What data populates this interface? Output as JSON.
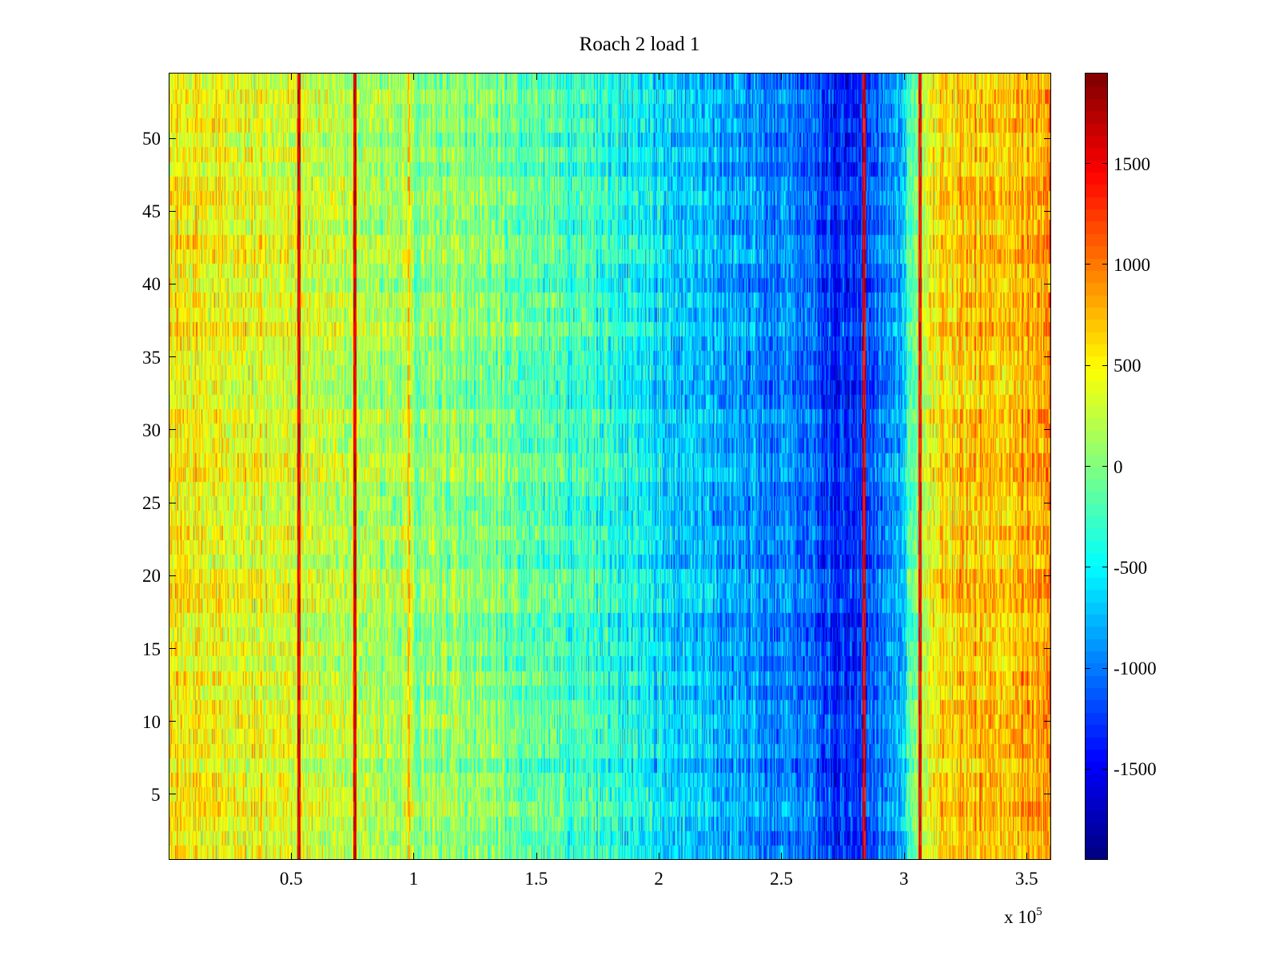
{
  "chart_data": {
    "type": "heatmap",
    "title": "Roach 2 load 1",
    "xlabel": "",
    "ylabel": "",
    "x_exponent_base": "x 10",
    "x_exponent_power": "5",
    "xlim": [
      0,
      3.6
    ],
    "ylim": [
      0.5,
      54.5
    ],
    "xticks": [
      0.5,
      1,
      1.5,
      2,
      2.5,
      3,
      3.5
    ],
    "xtick_labels": [
      "0.5",
      "1",
      "1.5",
      "2",
      "2.5",
      "3",
      "3.5"
    ],
    "yticks": [
      5,
      10,
      15,
      20,
      25,
      30,
      35,
      40,
      45,
      50
    ],
    "ytick_labels": [
      "5",
      "10",
      "15",
      "20",
      "25",
      "30",
      "35",
      "40",
      "45",
      "50"
    ],
    "rows": 54,
    "colorbar": {
      "colormap": "jet",
      "clim": [
        -1950,
        1950
      ],
      "ticks": [
        -1500,
        -1000,
        -500,
        0,
        500,
        1000,
        1500
      ],
      "tick_labels": [
        "-1500",
        "-1000",
        "-500",
        "0",
        "500",
        "1000",
        "1500"
      ]
    },
    "mean_profile_by_x": [
      {
        "x": 0.0,
        "value": 500
      },
      {
        "x": 0.3,
        "value": 450
      },
      {
        "x": 0.6,
        "value": 300
      },
      {
        "x": 1.0,
        "value": 100
      },
      {
        "x": 1.5,
        "value": -150
      },
      {
        "x": 1.9,
        "value": -450
      },
      {
        "x": 2.2,
        "value": -800
      },
      {
        "x": 2.55,
        "value": -950
      },
      {
        "x": 2.7,
        "value": -1300
      },
      {
        "x": 2.8,
        "value": -1350
      },
      {
        "x": 2.9,
        "value": -1050
      },
      {
        "x": 3.0,
        "value": -700
      },
      {
        "x": 3.06,
        "value": 150
      },
      {
        "x": 3.15,
        "value": 600
      },
      {
        "x": 3.35,
        "value": 750
      },
      {
        "x": 3.6,
        "value": 800
      }
    ],
    "vertical_bands": [
      {
        "x": 0.53,
        "value": 1850
      },
      {
        "x": 0.76,
        "value": 1900
      },
      {
        "x": 0.98,
        "value": 1000
      },
      {
        "x": 2.84,
        "value": 1850
      },
      {
        "x": 3.07,
        "value": 1750
      }
    ]
  }
}
